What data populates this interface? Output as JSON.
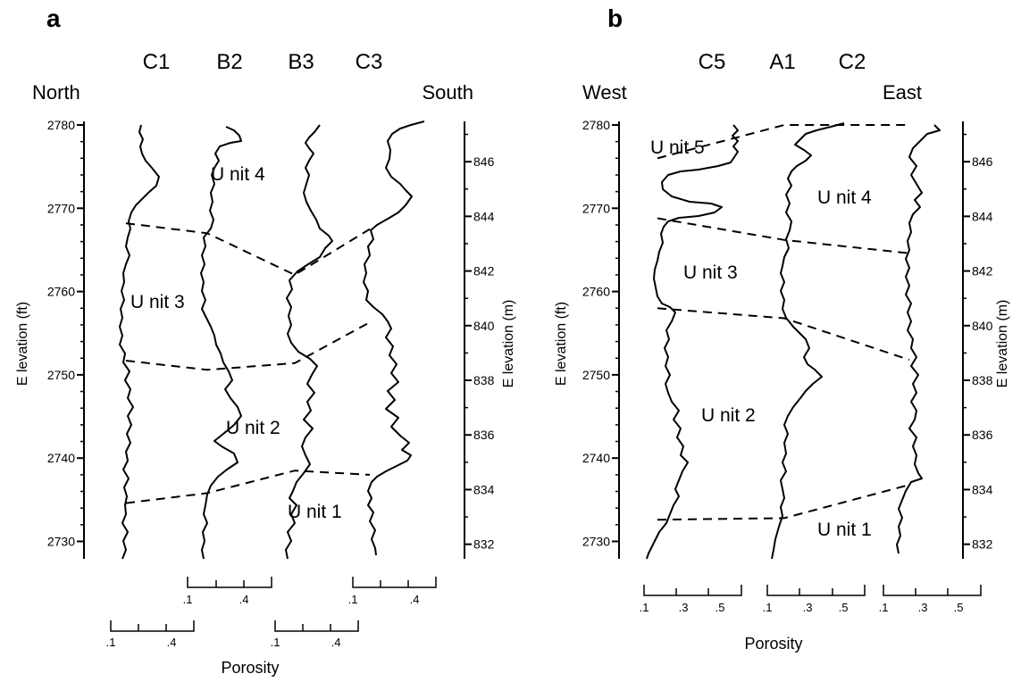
{
  "chart_data": [
    {
      "panel": "a",
      "type": "line",
      "wells": [
        "C1",
        "B2",
        "B3",
        "C3"
      ],
      "left_direction": "North",
      "right_direction": "South",
      "ylabel_left": "E levation (ft)",
      "ylabel_right": "E levation (m)",
      "ylim_ft": [
        2727.5,
        2780
      ],
      "yticks_ft": [
        "2780",
        "2770",
        "2760",
        "2750",
        "2740",
        "2730"
      ],
      "yticks_m": [
        "846",
        "844",
        "842",
        "840",
        "838",
        "836",
        "834",
        "832"
      ],
      "units": [
        "U nit 4",
        "U nit 3",
        "U nit 2",
        "U nit 1"
      ],
      "porosity_scales": [
        {
          "ticks": [
            ".1",
            ".4"
          ]
        },
        {
          "ticks": [
            ".1",
            ".4"
          ]
        },
        {
          "ticks": [
            ".1",
            ".4"
          ]
        },
        {
          "ticks": [
            ".1",
            ".4"
          ]
        }
      ],
      "xlabel": "Porosity",
      "unit_boundaries_ft": [
        {
          "name": "Unit 3 / Unit 4",
          "wells": [
            "C1",
            "B2",
            "B3",
            "C3"
          ],
          "elev_ft": [
            2768.2,
            2767.0,
            2762.0,
            2767.5
          ]
        },
        {
          "name": "Unit 2 / Unit 3",
          "wells": [
            "C1",
            "B2",
            "B3",
            "C3"
          ],
          "elev_ft": [
            2751.7,
            2750.6,
            2751.4,
            2756.3
          ]
        },
        {
          "name": "Unit 1 / Unit 2",
          "wells": [
            "C1",
            "B2",
            "B3",
            "C3"
          ],
          "elev_ft": [
            2734.6,
            2735.8,
            2738.5,
            2738.0
          ]
        }
      ]
    },
    {
      "panel": "b",
      "type": "line",
      "wells": [
        "C5",
        "A1",
        "C2"
      ],
      "left_direction": "West",
      "right_direction": "East",
      "ylabel_left": "E levation (ft)",
      "ylabel_right": "E levation (m)",
      "ylim_ft": [
        2727.5,
        2780
      ],
      "yticks_ft": [
        "2780",
        "2770",
        "2760",
        "2750",
        "2740",
        "2730"
      ],
      "yticks_m": [
        "846",
        "844",
        "842",
        "840",
        "838",
        "836",
        "834",
        "832"
      ],
      "units": [
        "U nit 5",
        "U nit 4",
        "U nit 3",
        "U nit 2",
        "U nit 1"
      ],
      "porosity_scales": [
        {
          "ticks": [
            ".1",
            ".3",
            ".5"
          ]
        },
        {
          "ticks": [
            ".1",
            ".3",
            ".5"
          ]
        },
        {
          "ticks": [
            ".1",
            ".3",
            ".5"
          ]
        }
      ],
      "xlabel": "Porosity",
      "unit_boundaries_ft": [
        {
          "name": "Unit 4 / Unit 5",
          "wells": [
            "C5",
            "A1",
            "C2"
          ],
          "elev_ft": [
            2776.0,
            2780.0,
            2780.0
          ]
        },
        {
          "name": "Unit 3 / Unit 4",
          "wells": [
            "C5",
            "A1",
            "C2"
          ],
          "elev_ft": [
            2768.8,
            2766.2,
            2764.6
          ]
        },
        {
          "name": "Unit 2 / Unit 3",
          "wells": [
            "C5",
            "A1",
            "C2"
          ],
          "elev_ft": [
            2758.0,
            2756.8,
            2751.8
          ]
        },
        {
          "name": "Unit 1 / Unit 2",
          "wells": [
            "C5",
            "A1",
            "C2"
          ],
          "elev_ft": [
            2732.6,
            2732.8,
            2736.8
          ]
        }
      ]
    }
  ]
}
